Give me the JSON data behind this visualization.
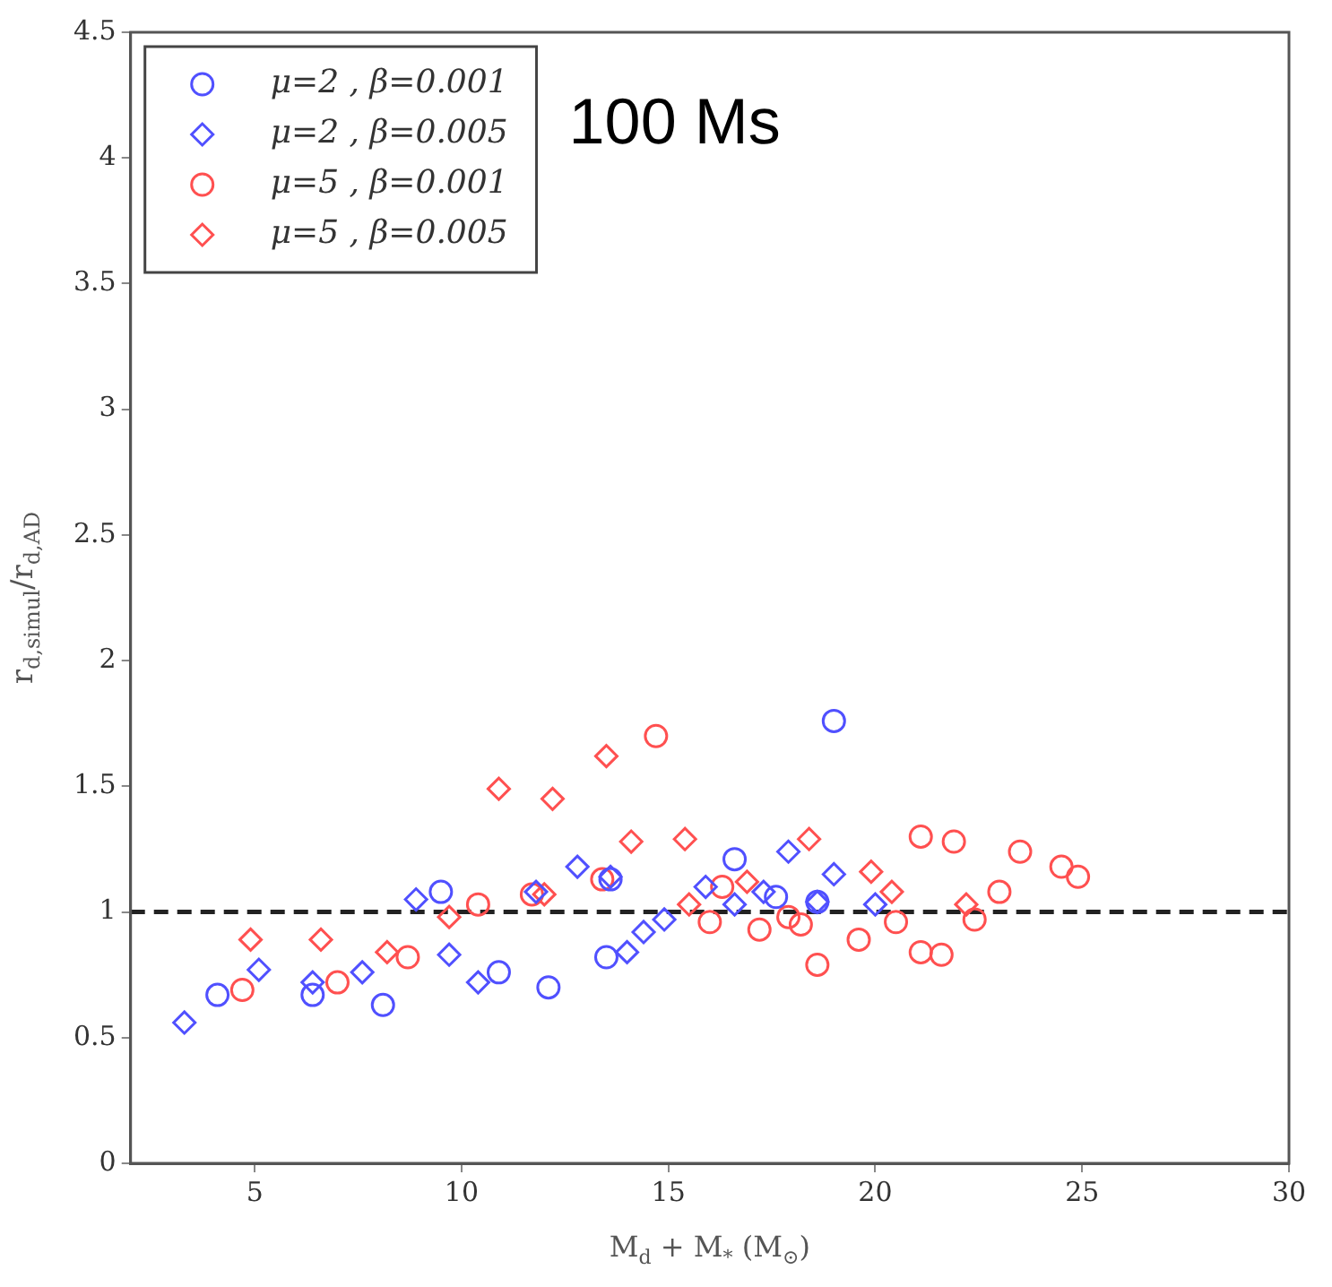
{
  "chart_data": {
    "type": "scatter",
    "xlabel": "M$_{d}$ + M$_{*}$ (M$_{⊙}$)",
    "ylabel": "r$_{d,simul}$/r$_{d,AD}$",
    "annotations": [
      "100 Ms"
    ],
    "xlim": [
      2,
      30
    ],
    "xticks": [
      5,
      10,
      15,
      20,
      25,
      30
    ],
    "ylim": [
      0,
      4.5
    ],
    "yticks": [
      0,
      0.5,
      1,
      1.5,
      2,
      2.5,
      3,
      3.5,
      4,
      4.5
    ],
    "grid": false,
    "legend": "top left",
    "ref_lines": [
      {
        "axis": "y",
        "value": 1.0,
        "color": "#222222",
        "line_style": "dashed"
      }
    ],
    "series": [
      {
        "name": "μ=2 , β=0.001",
        "color": "#5050ff",
        "marker": "circle",
        "x": [
          4.1,
          6.4,
          8.1,
          9.5,
          10.9,
          12.1,
          13.5,
          13.6,
          16.6,
          17.6,
          18.6,
          19.0
        ],
        "values": [
          0.67,
          0.67,
          0.63,
          1.08,
          0.76,
          0.7,
          0.82,
          1.13,
          1.21,
          1.06,
          1.04,
          1.76
        ]
      },
      {
        "name": "μ=2 , β=0.005",
        "color": "#5050ff",
        "marker": "diamond",
        "x": [
          3.3,
          5.1,
          6.4,
          7.6,
          8.9,
          9.7,
          10.4,
          11.8,
          12.8,
          13.6,
          14.0,
          14.4,
          14.9,
          15.9,
          16.6,
          17.3,
          17.9,
          18.6,
          19.0,
          20.0
        ],
        "values": [
          0.56,
          0.77,
          0.72,
          0.76,
          1.05,
          0.83,
          0.72,
          1.08,
          1.18,
          1.14,
          0.84,
          0.92,
          0.97,
          1.1,
          1.03,
          1.08,
          1.24,
          1.04,
          1.15,
          1.03
        ]
      },
      {
        "name": "μ=5 , β=0.001",
        "color": "#ff5050",
        "marker": "circle",
        "x": [
          4.7,
          7.0,
          8.7,
          10.4,
          11.7,
          13.4,
          14.7,
          16.0,
          16.3,
          17.2,
          17.9,
          18.2,
          18.6,
          19.6,
          20.5,
          21.1,
          21.1,
          21.6,
          21.9,
          22.4,
          23.0,
          23.5,
          24.5,
          24.9
        ],
        "values": [
          0.69,
          0.72,
          0.82,
          1.03,
          1.07,
          1.13,
          1.7,
          0.96,
          1.1,
          0.93,
          0.98,
          0.95,
          0.79,
          0.89,
          0.96,
          1.3,
          0.84,
          0.83,
          1.28,
          0.97,
          1.08,
          1.24,
          1.18,
          1.14
        ]
      },
      {
        "name": "μ=5 , β=0.005",
        "color": "#ff5050",
        "marker": "diamond",
        "x": [
          4.9,
          6.6,
          8.2,
          9.7,
          10.9,
          12.0,
          12.2,
          13.5,
          14.1,
          15.4,
          15.5,
          16.9,
          18.4,
          19.9,
          20.4,
          22.2
        ],
        "values": [
          0.89,
          0.89,
          0.84,
          0.98,
          1.49,
          1.07,
          1.45,
          1.62,
          1.28,
          1.29,
          1.03,
          1.12,
          1.29,
          1.16,
          1.08,
          1.03
        ]
      }
    ]
  }
}
